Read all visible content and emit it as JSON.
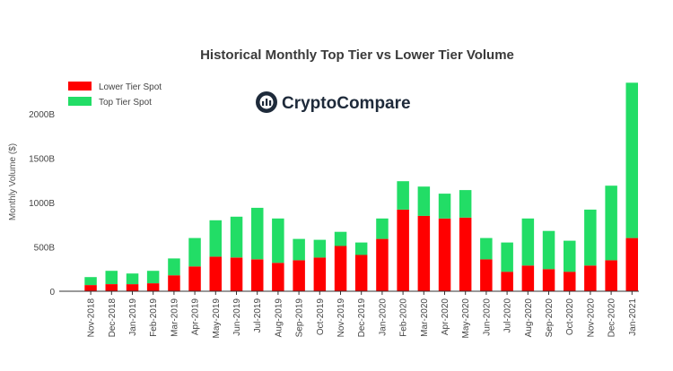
{
  "brand": {
    "logo_text": "CryptoCompare",
    "logo_icon": "cryptocompare-logo-icon"
  },
  "chart_data": {
    "type": "bar",
    "stacked": true,
    "title": "Historical Monthly Top Tier vs Lower Tier Volume",
    "xlabel": "",
    "ylabel": "Monthly Volume ($)",
    "ylim": [
      0,
      2400
    ],
    "yticks": [
      0,
      500,
      1000,
      1500,
      2000
    ],
    "ytick_labels": [
      "0",
      "500B",
      "1000B",
      "1500B",
      "2000B"
    ],
    "legend_position": "top-left",
    "grid": false,
    "categories": [
      "Nov-2018",
      "Dec-2018",
      "Jan-2019",
      "Feb-2019",
      "Mar-2019",
      "Apr-2019",
      "May-2019",
      "Jun-2019",
      "Jul-2019",
      "Aug-2019",
      "Sep-2019",
      "Oct-2019",
      "Nov-2019",
      "Dec-2019",
      "Jan-2020",
      "Feb-2020",
      "Mar-2020",
      "Apr-2020",
      "May-2020",
      "Jun-2020",
      "Jul-2020",
      "Aug-2020",
      "Sep-2020",
      "Oct-2020",
      "Nov-2020",
      "Dec-2020",
      "Jan-2021"
    ],
    "series": [
      {
        "name": "Lower Tier Spot",
        "color": "#ff0000",
        "values": [
          70,
          80,
          80,
          90,
          180,
          280,
          390,
          380,
          360,
          320,
          350,
          380,
          510,
          410,
          590,
          920,
          850,
          820,
          830,
          360,
          220,
          290,
          250,
          220,
          290,
          350,
          600
        ]
      },
      {
        "name": "Top Tier Spot",
        "color": "#22dd66",
        "values": [
          90,
          150,
          120,
          140,
          190,
          320,
          410,
          460,
          580,
          500,
          240,
          200,
          160,
          140,
          230,
          320,
          330,
          280,
          310,
          240,
          330,
          530,
          430,
          350,
          630,
          840,
          1750
        ]
      }
    ]
  }
}
